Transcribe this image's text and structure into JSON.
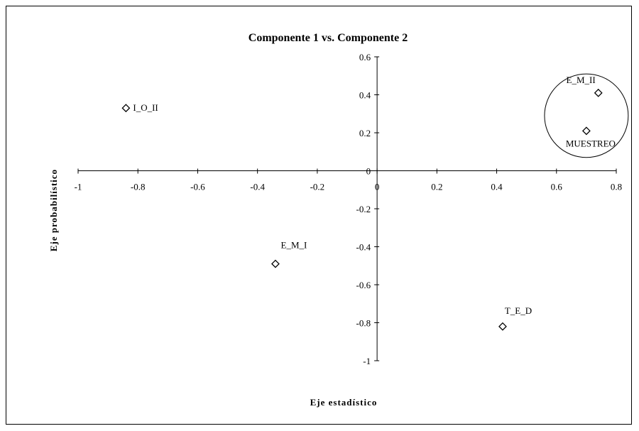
{
  "chart_data": {
    "type": "scatter",
    "title": "Componente 1 vs. Componente 2",
    "xlabel": "Eje estadístico",
    "ylabel": "Eje probabilístico",
    "xlim": [
      -1,
      0.8
    ],
    "ylim": [
      -1,
      0.6
    ],
    "x_ticks": [
      "-1",
      "-0.8",
      "-0.6",
      "-0.4",
      "-0.2",
      "0",
      "0.2",
      "0.4",
      "0.6",
      "0.8"
    ],
    "y_ticks": [
      "0.6",
      "0.4",
      "0.2",
      "0",
      "-0.2",
      "-0.4",
      "-0.6",
      "-0.8",
      "-1"
    ],
    "grid": false,
    "marker": "diamond",
    "points": [
      {
        "label": "I_O_II",
        "x": -0.84,
        "y": 0.33
      },
      {
        "label": "E_M_II",
        "x": 0.74,
        "y": 0.41
      },
      {
        "label": "MUESTREO",
        "x": 0.7,
        "y": 0.21
      },
      {
        "label": "E_M_I",
        "x": -0.34,
        "y": -0.49
      },
      {
        "label": "T_E_D",
        "x": 0.42,
        "y": -0.82
      }
    ],
    "annotations": [
      {
        "type": "ellipse",
        "center": [
          0.7,
          0.29
        ],
        "radius_x": 0.14,
        "radius_y": 0.22
      }
    ]
  }
}
